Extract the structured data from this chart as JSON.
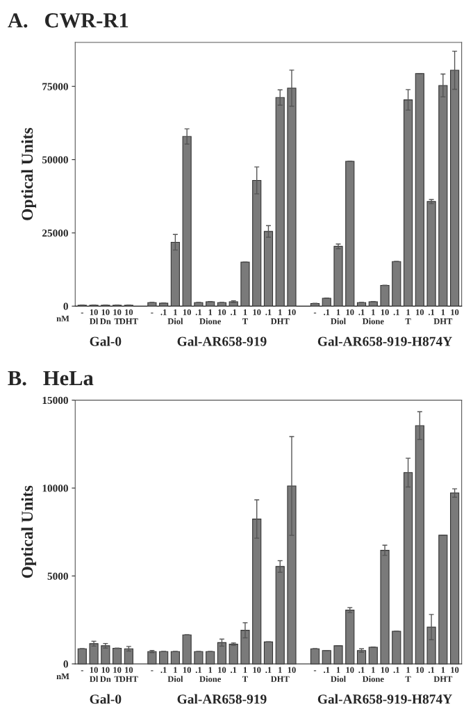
{
  "chart_data": [
    {
      "type": "bar",
      "title": "A.   CWR-R1",
      "ylabel": "Optical Units",
      "color": "#7a7a7a",
      "categories": [
        "-",
        "10\nDl",
        "10\nDn",
        "10\nT",
        "10\nDHT",
        null,
        "-",
        ".1",
        "1\nDiol",
        "10",
        ".1",
        "1\nDione",
        "10",
        ".1",
        "1\nT",
        "10",
        ".1",
        "1\nDHT",
        "10",
        null,
        "-",
        ".1",
        "1\nDiol",
        "10",
        ".1",
        "1\nDione",
        "10",
        ".1",
        "1\nT",
        "10",
        ".1",
        "1\nDHT",
        "10"
      ],
      "values": [
        300,
        300,
        300,
        300,
        300,
        null,
        1200,
        1000,
        21800,
        57900,
        1200,
        1500,
        1200,
        1500,
        15000,
        42900,
        25500,
        71200,
        74400,
        null,
        900,
        2700,
        20400,
        49400,
        1200,
        1500,
        7100,
        15200,
        70400,
        79400,
        35700,
        75300,
        80500
      ],
      "errors": [
        null,
        null,
        null,
        null,
        null,
        null,
        null,
        null,
        2650,
        2600,
        null,
        null,
        null,
        300,
        null,
        4600,
        2000,
        2600,
        6150,
        null,
        null,
        null,
        800,
        null,
        null,
        null,
        null,
        null,
        3500,
        null,
        700,
        3900,
        6500
      ],
      "ylim": [
        0,
        90000
      ],
      "yticks": [
        0,
        25000,
        50000,
        75000
      ],
      "annotations": [
        "nM",
        "Gal-0",
        "Gal-AR658-919",
        "Gal-AR658-919-H874Y"
      ]
    },
    {
      "type": "bar",
      "title": "B.   HeLa",
      "ylabel": "Optical Units",
      "color": "#7a7a7a",
      "categories": [
        "-",
        "10\nDl",
        "10\nDn",
        "10\nT",
        "10\nDHT",
        null,
        "-",
        ".1",
        "1\nDiol",
        "10",
        ".1",
        "1\nDione",
        "10",
        ".1",
        "1\nT",
        "10",
        ".1",
        "1\nDHT",
        "10",
        null,
        "-",
        ".1",
        "1\nDiol",
        "10",
        ".1",
        "1\nDione",
        "10",
        ".1",
        "1\nT",
        "10",
        ".1",
        "1\nDHT",
        "10"
      ],
      "values": [
        860,
        1150,
        1030,
        890,
        860,
        null,
        700,
        700,
        700,
        1650,
        700,
        700,
        1210,
        1120,
        1910,
        8240,
        1250,
        5540,
        10120,
        null,
        860,
        760,
        1030,
        3060,
        760,
        950,
        6460,
        1850,
        10880,
        13550,
        2090,
        7320,
        9720
      ],
      "errors": [
        null,
        140,
        130,
        null,
        130,
        null,
        60,
        null,
        null,
        null,
        null,
        null,
        200,
        70,
        430,
        1090,
        null,
        330,
        2810,
        null,
        null,
        null,
        null,
        140,
        100,
        null,
        290,
        null,
        820,
        790,
        720,
        null,
        240
      ],
      "ylim": [
        0,
        15000
      ],
      "yticks": [
        0,
        5000,
        10000,
        15000
      ],
      "annotations": [
        "nM",
        "Gal-0",
        "Gal-AR658-919",
        "Gal-AR658-919-H874Y"
      ]
    }
  ]
}
